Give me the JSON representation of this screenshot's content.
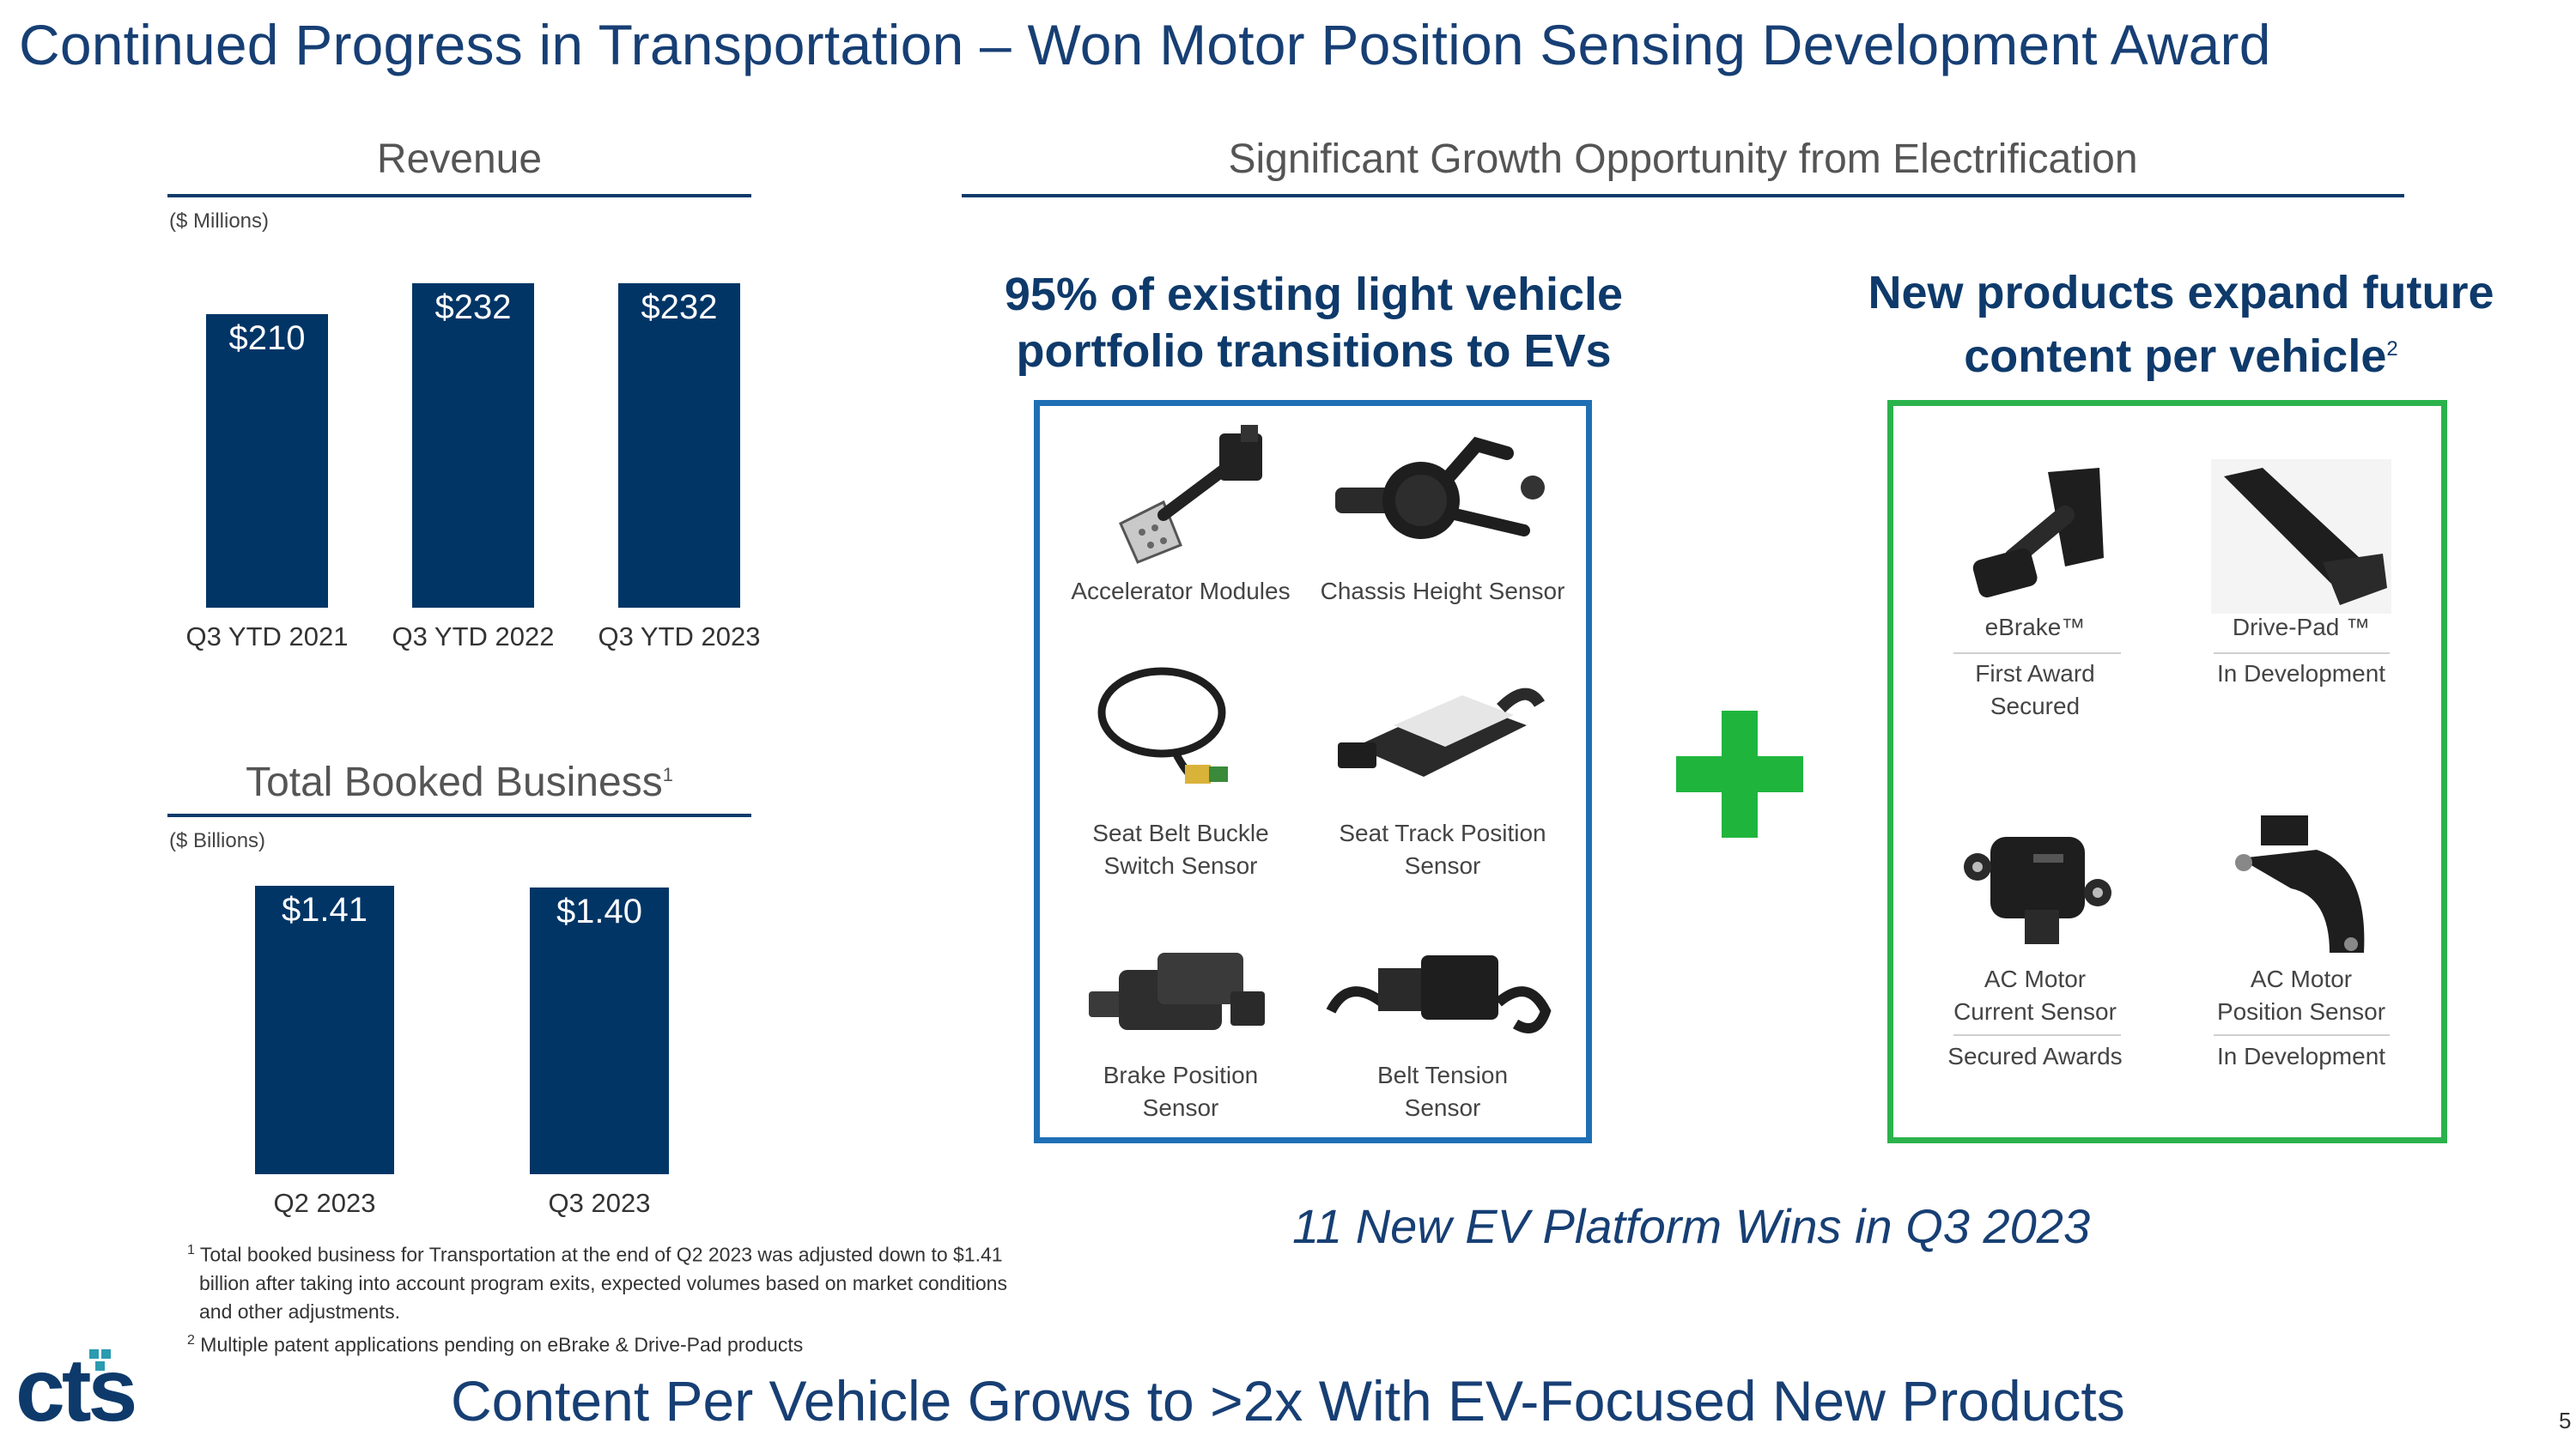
{
  "title": "Continued Progress in Transportation – Won Motor Position Sensing Development Award",
  "page_number": "5",
  "logo_text": "cts",
  "revenue": {
    "title": "Revenue",
    "unit": "($ Millions)"
  },
  "booked": {
    "title": "Total Booked Business",
    "title_sup": "1",
    "unit": "($ Billions)"
  },
  "chart_data": [
    {
      "type": "bar",
      "title": "Revenue",
      "ylabel": "($ Millions)",
      "categories": [
        "Q3 YTD 2021",
        "Q3 YTD 2022",
        "Q3 YTD 2023"
      ],
      "values": [
        210,
        232,
        232
      ],
      "labels": [
        "$210",
        "$232",
        "$232"
      ],
      "ylim": [
        0,
        232
      ]
    },
    {
      "type": "bar",
      "title": "Total Booked Business",
      "ylabel": "($ Billions)",
      "categories": [
        "Q2 2023",
        "Q3 2023"
      ],
      "values": [
        1.41,
        1.4
      ],
      "labels": [
        "$1.41",
        "$1.40"
      ],
      "ylim": [
        0,
        1.41
      ]
    }
  ],
  "growth": {
    "title": "Significant Growth Opportunity from Electrification",
    "left_heading_line1": "95% of existing light vehicle",
    "left_heading_line2": "portfolio transitions to EVs",
    "right_heading_line1": "New products expand future",
    "right_heading_line2": "content per vehicle",
    "right_heading_sup": "2",
    "existing_products": [
      {
        "line1": "Accelerator Modules",
        "line2": ""
      },
      {
        "line1": "Chassis Height Sensor",
        "line2": ""
      },
      {
        "line1": "Seat Belt Buckle",
        "line2": "Switch Sensor"
      },
      {
        "line1": "Seat Track Position",
        "line2": "Sensor"
      },
      {
        "line1": "Brake Position",
        "line2": "Sensor"
      },
      {
        "line1": "Belt Tension",
        "line2": "Sensor"
      }
    ],
    "new_products": [
      {
        "name1": "eBrake™",
        "name2": "",
        "status1": "First Award",
        "status2": "Secured"
      },
      {
        "name1": "Drive-Pad ™",
        "name2": "",
        "status1": "In Development",
        "status2": ""
      },
      {
        "name1": "AC Motor",
        "name2": "Current Sensor",
        "status1": "Secured Awards",
        "status2": ""
      },
      {
        "name1": "AC Motor",
        "name2": "Position Sensor",
        "status1": "In Development",
        "status2": ""
      }
    ],
    "ev_wins": "11 New EV Platform Wins in Q3 2023"
  },
  "footnotes": {
    "n1_mark": "1",
    "n1_line1": "Total booked business for Transportation at the end of Q2 2023 was adjusted down to $1.41",
    "n1_line2": "billion after taking into account program exits, expected volumes based on market conditions",
    "n1_line3": "and other adjustments.",
    "n2_mark": "2",
    "n2_line1": "Multiple patent applications pending on eBrake & Drive-Pad products"
  },
  "bottom_line": "Content Per Vehicle Grows to >2x With EV-Focused New Products",
  "colors": {
    "navy": "#0e3a6b",
    "bar": "#003566",
    "blue_box": "#1f6fb5",
    "green_box": "#2bb24c",
    "green_plus": "#1fb53d",
    "logo_teal": "#2a9bb0"
  }
}
